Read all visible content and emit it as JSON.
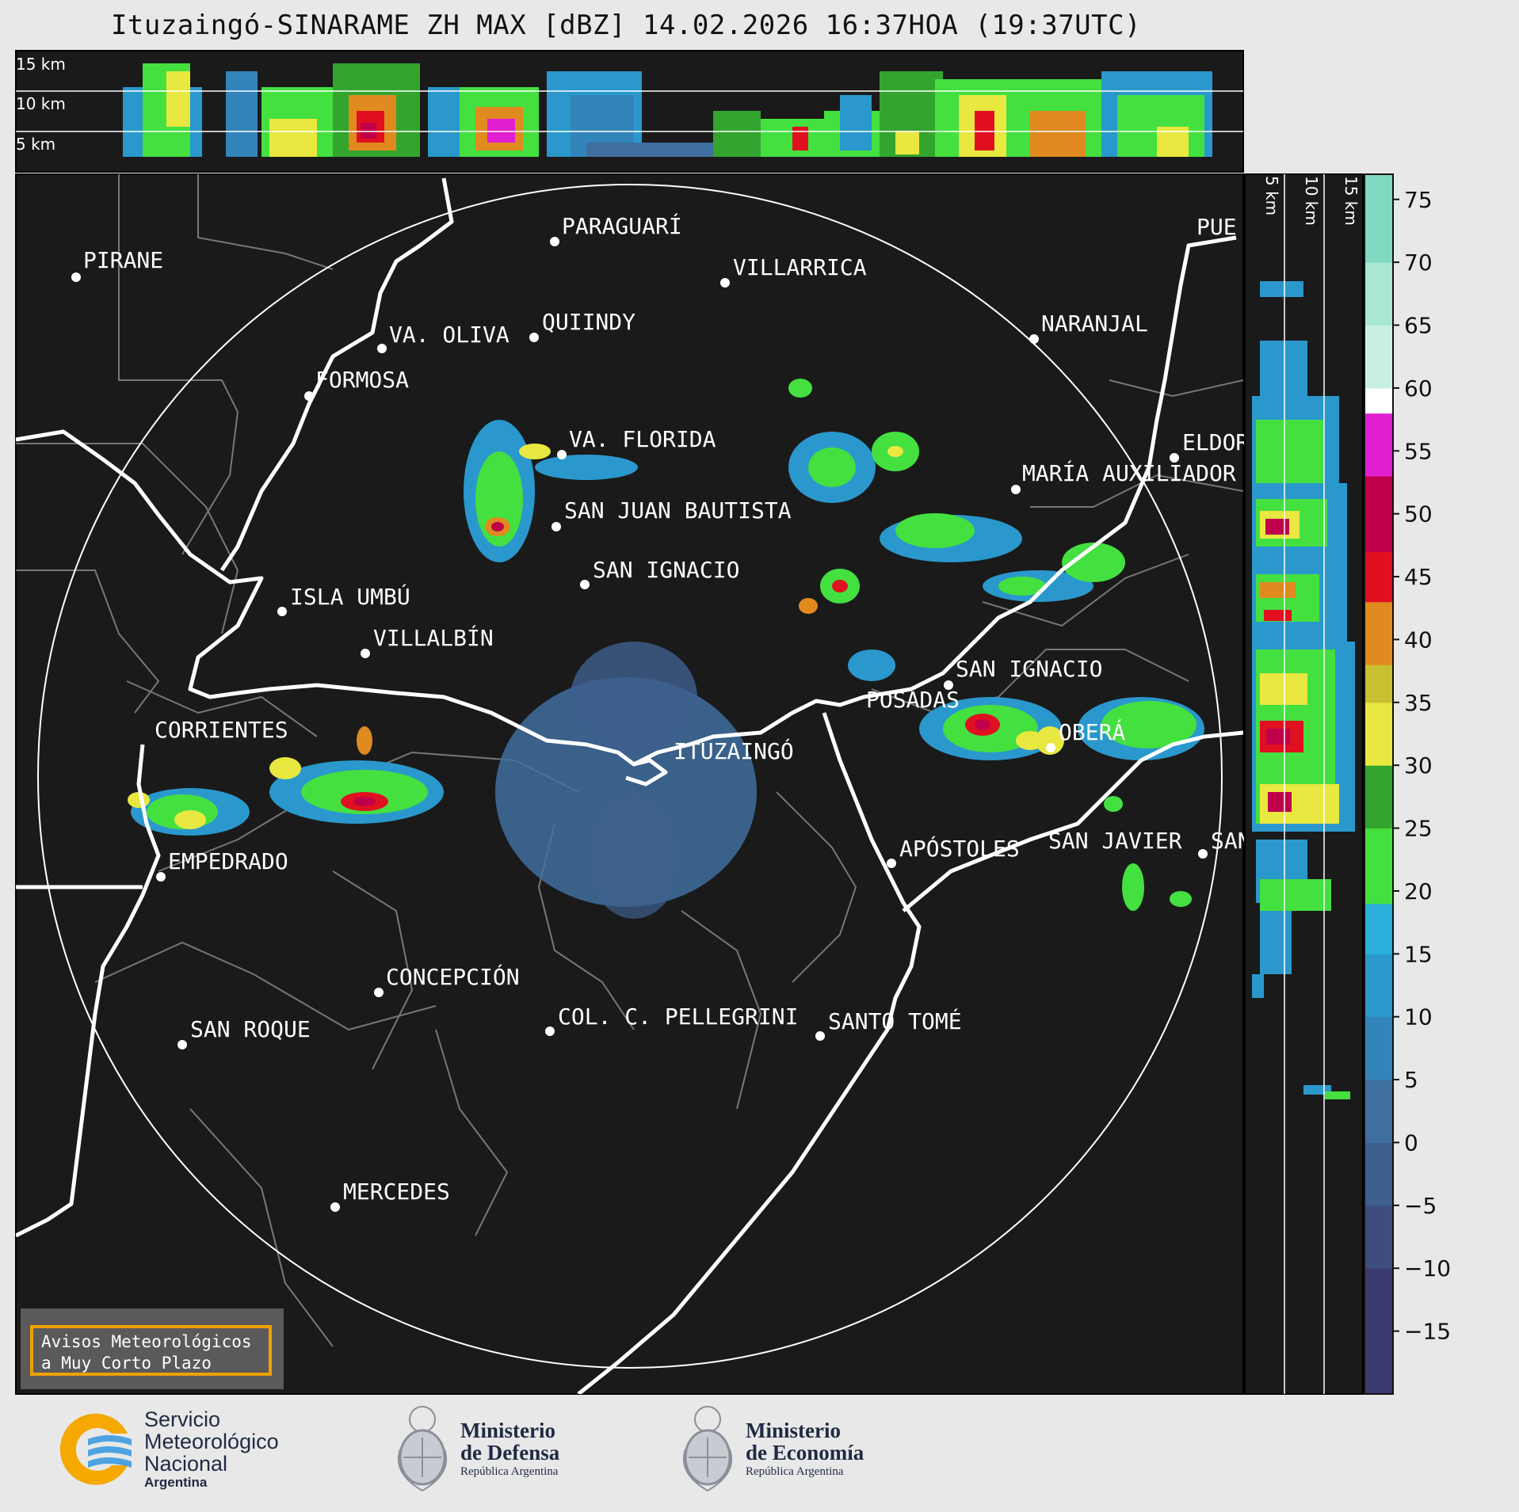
{
  "title": "Ituzaingó-SINARAME ZH MAX [dBZ] 14.02.2026 16:37HOA (19:37UTC)",
  "top_panel_km_labels": [
    "15 km",
    "10 km",
    "5 km"
  ],
  "side_panel_km_labels": [
    "5 km",
    "10 km",
    "15 km"
  ],
  "colorbar": {
    "ticks": [
      "75",
      "70",
      "65",
      "60",
      "55",
      "50",
      "45",
      "40",
      "35",
      "30",
      "25",
      "20",
      "15",
      "10",
      "5",
      "0",
      "−5",
      "−10",
      "−15"
    ],
    "colors": {
      "v_15": "#3a3a6e",
      "v_10": "#3d4d7e",
      "v_5": "#3e5f8e",
      "v0": "#3f6f9e",
      "v5": "#3384ba",
      "v10": "#2a98cc",
      "v15": "#2aaedb",
      "v20": "#44e040",
      "v25": "#33a52e",
      "v30": "#e8e840",
      "v35": "#c8c030",
      "v40": "#e08a20",
      "v45": "#e01020",
      "v50": "#c0004a",
      "v55": "#e020d0",
      "v60": "#ffffff",
      "v65": "#c8f0e0",
      "v70": "#a8e8d0",
      "v75": "#80d8c0"
    }
  },
  "places": [
    {
      "name": "PIRANE"
    },
    {
      "name": "PARAGUARÍ"
    },
    {
      "name": "VILLARRICA"
    },
    {
      "name": "QUIINDY"
    },
    {
      "name": "VA. OLIVA"
    },
    {
      "name": "NARANJAL"
    },
    {
      "name": "FORMOSA"
    },
    {
      "name": "PUE"
    },
    {
      "name": "VA. FLORIDA"
    },
    {
      "name": "ELDOR"
    },
    {
      "name": "MARÍA AUXILIADOR"
    },
    {
      "name": "SAN JUAN BAUTISTA"
    },
    {
      "name": "SAN IGNACIO"
    },
    {
      "name": "ISLA UMBÚ"
    },
    {
      "name": "VILLALBÍN"
    },
    {
      "name": "SAN IGNACIO"
    },
    {
      "name": "POSADAS"
    },
    {
      "name": "CORRIENTES"
    },
    {
      "name": "ITUZAINGÓ"
    },
    {
      "name": "OBERÁ"
    },
    {
      "name": "EMPEDRADO"
    },
    {
      "name": "APÓSTOLES"
    },
    {
      "name": "SAN JAVIER"
    },
    {
      "name": "SAN"
    },
    {
      "name": "CONCEPCIÓN"
    },
    {
      "name": "COL. C. PELLEGRINI"
    },
    {
      "name": "SANTO TOMÉ"
    },
    {
      "name": "SAN ROQUE"
    },
    {
      "name": "MERCEDES"
    }
  ],
  "avisos": {
    "line1": "Avisos Meteorológicos",
    "line2": "a Muy Corto Plazo"
  },
  "logos": {
    "smn": {
      "line1": "Servicio",
      "line2": "Meteorológico",
      "line3": "Nacional",
      "line4": "Argentina"
    },
    "defensa": {
      "line1": "Ministerio",
      "line2": "de Defensa",
      "line3": "República Argentina"
    },
    "economia": {
      "line1": "Ministerio",
      "line2": "de Economía",
      "line3": "República Argentina"
    }
  }
}
